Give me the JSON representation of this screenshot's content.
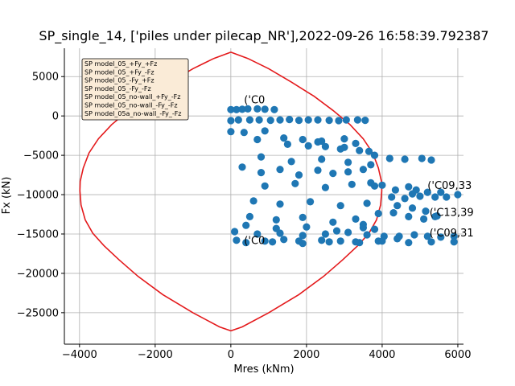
{
  "chart_data": {
    "type": "scatter",
    "title": "SP_single_14, ['piles under pilecap_NR'],2022-09-26 16:58:39.792387",
    "xlabel": "Mres (kNm)",
    "ylabel": "Fx (kN)",
    "xlim": [
      -4400,
      6150
    ],
    "ylim": [
      -29000,
      8600
    ],
    "xticks": [
      -4000,
      -2000,
      0,
      2000,
      4000,
      6000
    ],
    "yticks": [
      5000,
      0,
      -5000,
      -10000,
      -15000,
      -20000,
      -25000
    ],
    "grid": true,
    "legend_position": "top-left",
    "legend_entries": [
      "SP model_05_+Fy_+Fz",
      "SP model_05_+Fy_-Fz",
      "SP model_05_-Fy_+Fz",
      "SP model_05_-Fy_-Fz",
      "SP model_05_no-wall_+Fy_-Fz",
      "SP model_05_no-wall_-Fy_-Fz",
      "SP model_05a_no-wall_-Fy_-Fz"
    ],
    "colors": {
      "capacity_curve": "#e41a1c",
      "points": "#1f77b4",
      "grid": "#b0b0b0",
      "legend_bg": "#faebd7"
    },
    "capacity_curve": {
      "x": [
        0,
        450,
        1000,
        1600,
        2200,
        2700,
        3150,
        3500,
        3750,
        3900,
        3980,
        3990,
        3960,
        3850,
        3650,
        3350,
        2950,
        2450,
        1800,
        1000,
        300,
        0,
        -300,
        -1000,
        -1800,
        -2450,
        -2950,
        -3350,
        -3650,
        -3850,
        -3960,
        -3990,
        -3980,
        -3900,
        -3750,
        -3500,
        -3150,
        -2700,
        -2200,
        -1600,
        -1000,
        -450,
        0
      ],
      "y": [
        8100,
        7300,
        6000,
        4300,
        2500,
        700,
        -1100,
        -2900,
        -4700,
        -6600,
        -8300,
        -9500,
        -11300,
        -13200,
        -14900,
        -16500,
        -18300,
        -20400,
        -22700,
        -25000,
        -26800,
        -27300,
        -26800,
        -25000,
        -22700,
        -20400,
        -18300,
        -16500,
        -14900,
        -13200,
        -11300,
        -9500,
        -8300,
        -6600,
        -4700,
        -2900,
        -1100,
        700,
        2500,
        4300,
        6000,
        7300,
        8100
      ]
    },
    "scatter_points": {
      "x": [
        0,
        150,
        300,
        450,
        700,
        900,
        1150,
        0,
        200,
        500,
        750,
        1050,
        1300,
        1550,
        1800,
        2050,
        2300,
        2600,
        2850,
        3050,
        3350,
        3550,
        0,
        350,
        900,
        1400,
        1900,
        2400,
        2900,
        3300,
        3650,
        2050,
        2500,
        3000,
        3400,
        3800,
        4200,
        4600,
        5050,
        5300,
        4700,
        4900,
        3700,
        4000,
        4350,
        4800,
        5200,
        5550,
        4250,
        4600,
        5000,
        5400,
        5700,
        6000,
        4400,
        4800,
        5150,
        5450,
        3900,
        4300,
        4700,
        5100,
        5400,
        100,
        700,
        1300,
        1900,
        2500,
        3100,
        3600,
        4050,
        4450,
        4850,
        5200,
        5550,
        5900,
        150,
        400,
        900,
        1400,
        1900,
        2400,
        2900,
        3400,
        3900,
        4400,
        1100,
        1800,
        2600,
        3300,
        4000,
        4700,
        5300,
        5900,
        3500,
        3800,
        300,
        800,
        1300,
        1800,
        2300,
        2700,
        3100,
        3500,
        900,
        1700,
        2500,
        3200,
        3800,
        600,
        1300,
        2100,
        2900,
        3600,
        500,
        1200,
        1900,
        2700,
        3300,
        700,
        1500,
        2300,
        3000,
        800,
        1600,
        2400,
        3100,
        3700,
        400,
        1200,
        2000,
        2800,
        3500
      ],
      "y": [
        800,
        800,
        850,
        900,
        900,
        850,
        800,
        -600,
        -500,
        -500,
        -500,
        -550,
        -500,
        -450,
        -550,
        -500,
        -500,
        -550,
        -600,
        -500,
        -500,
        -550,
        -2000,
        -2100,
        -1900,
        -2800,
        -3000,
        -3200,
        -4200,
        -3500,
        -4500,
        -3800,
        -3900,
        -4000,
        -4400,
        -5000,
        -5400,
        -5500,
        -5400,
        -5600,
        -9000,
        -9400,
        -8500,
        -8800,
        -9400,
        -9900,
        -9700,
        -9700,
        -10300,
        -10500,
        -10200,
        -10300,
        -10300,
        -10000,
        -11400,
        -11700,
        -12100,
        -12700,
        -12400,
        -12300,
        -12800,
        -13100,
        -12800,
        -14700,
        -15000,
        -14900,
        -15200,
        -15000,
        -14800,
        -15100,
        -15300,
        -15300,
        -15100,
        -15300,
        -15400,
        -15300,
        -15800,
        -16100,
        -15900,
        -15700,
        -16200,
        -15800,
        -15900,
        -16100,
        -15900,
        -15600,
        -16000,
        -15900,
        -16000,
        -16000,
        -15900,
        -16100,
        -16000,
        -16000,
        -13800,
        -14400,
        -6500,
        -7200,
        -6800,
        -7500,
        -6900,
        -7300,
        -7100,
        -6800,
        -8900,
        -8600,
        -9100,
        -8700,
        -8900,
        -10800,
        -11200,
        -10900,
        -11400,
        -11100,
        -12800,
        -13200,
        -12900,
        -13500,
        -13100,
        -3000,
        -3600,
        -3300,
        -2900,
        -5200,
        -5800,
        -5500,
        -5900,
        -6200,
        -13900,
        -14300,
        -14100,
        -14600,
        -14200
      ]
    },
    "annotations": [
      {
        "text": "('C0",
        "x": 350,
        "y": 1600
      },
      {
        "text": "('C09,33",
        "x": 5200,
        "y": -9300
      },
      {
        "text": "('C13,39",
        "x": 5250,
        "y": -12700
      },
      {
        "text": "('C09,31",
        "x": 5250,
        "y": -15300
      },
      {
        "text": "('C0",
        "x": 350,
        "y": -16300
      }
    ]
  }
}
